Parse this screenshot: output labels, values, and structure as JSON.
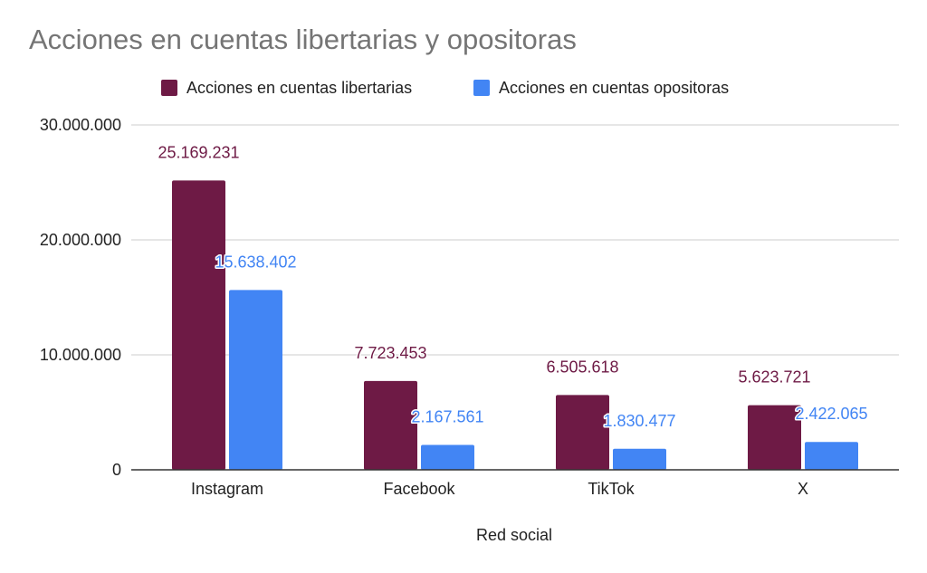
{
  "colors": {
    "series_1": "#6e1a45",
    "series_2": "#4285f4",
    "gridline": "#cccccc",
    "baseline": "#333333"
  },
  "chart_data": {
    "type": "bar",
    "title": "Acciones en cuentas libertarias y opositoras",
    "xlabel": "Red social",
    "ylabel": "",
    "categories": [
      "Instagram",
      "Facebook",
      "TikTok",
      "X"
    ],
    "series": [
      {
        "name": "Acciones en cuentas libertarias",
        "values": [
          25169231,
          7723453,
          6505618,
          5623721
        ],
        "labels": [
          "25.169.231",
          "7.723.453",
          "6.505.618",
          "5.623.721"
        ]
      },
      {
        "name": "Acciones en cuentas opositoras",
        "values": [
          15638402,
          2167561,
          1830477,
          2422065
        ],
        "labels": [
          "15.638.402",
          "2.167.561",
          "1.830.477",
          "2.422.065"
        ]
      }
    ],
    "ylim": [
      0,
      30000000
    ],
    "yticks": [
      0,
      10000000,
      20000000,
      30000000
    ],
    "ytick_labels": [
      "0",
      "10.000.000",
      "20.000.000",
      "30.000.000"
    ],
    "grid": true,
    "legend_position": "top"
  }
}
